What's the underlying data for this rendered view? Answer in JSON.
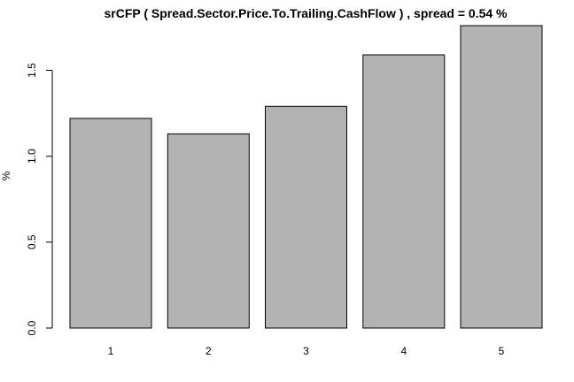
{
  "chart_data": {
    "type": "bar",
    "title": "srCFP ( Spread.Sector.Price.To.Trailing.CashFlow ) , spread = 0.54 %",
    "xlabel": "",
    "ylabel": "%",
    "categories": [
      "1",
      "2",
      "3",
      "4",
      "5"
    ],
    "values": [
      1.22,
      1.13,
      1.29,
      1.59,
      1.76
    ],
    "ylim": [
      0,
      1.76
    ],
    "yticks": [
      0.0,
      0.5,
      1.0,
      1.5
    ],
    "ytick_labels": [
      "0.0",
      "0.5",
      "1.0",
      "1.5"
    ],
    "bar_color": "#b3b3b3",
    "grid": false,
    "legend": "none"
  }
}
